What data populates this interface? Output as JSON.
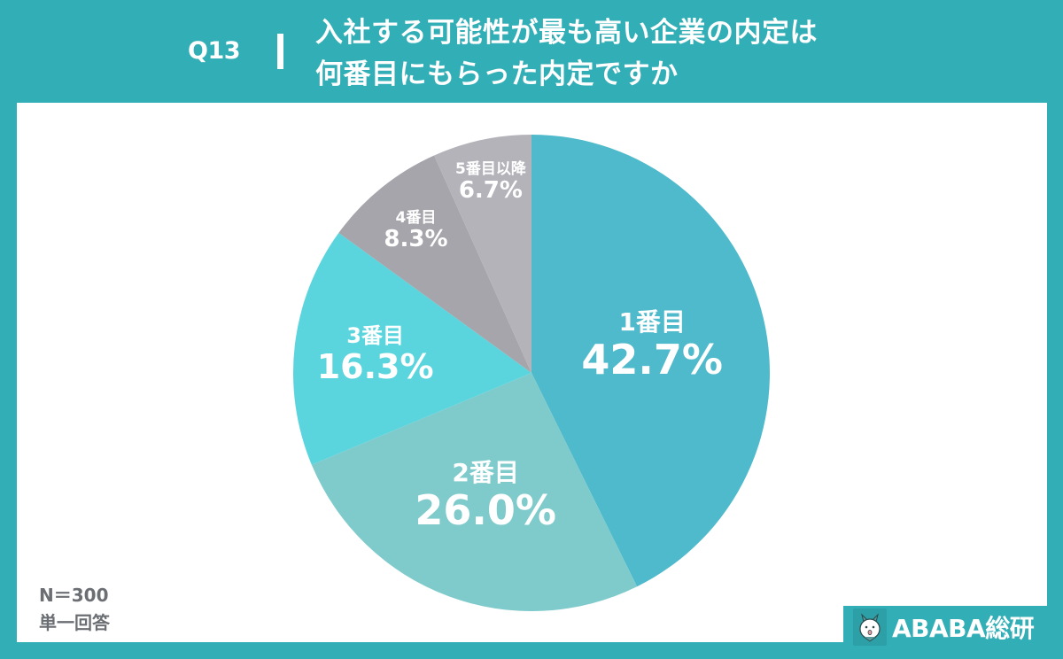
{
  "header": {
    "question_no": "Q13",
    "title_line1": "入社する可能性が最も高い企業の内定は",
    "title_line2": "何番目にもらった内定ですか"
  },
  "notes": {
    "sample_size": "N＝300",
    "answer_type": "単一回答"
  },
  "brand": {
    "name": "ABABA総研",
    "icon": "alpaca-mascot-icon"
  },
  "colors": {
    "background": "#32aeb6",
    "panel": "#ffffff",
    "slice_1": "#4fbacb",
    "slice_2": "#7fcbcc",
    "slice_3": "#5ad5dd",
    "slice_4": "#a5a5ab",
    "slice_5": "#b4b3ba"
  },
  "chart_data": {
    "type": "pie",
    "title": "入社する可能性が最も高い企業の内定は何番目にもらった内定ですか",
    "categories": [
      "1番目",
      "2番目",
      "3番目",
      "4番目",
      "5番目以降"
    ],
    "values": [
      42.7,
      26.0,
      16.3,
      8.3,
      6.7
    ],
    "value_labels": [
      "42.7%",
      "26.0%",
      "16.3%",
      "8.3%",
      "6.7%"
    ],
    "unit": "%",
    "start_angle": "12 o'clock",
    "direction": "clockwise",
    "legend": "none (labels inside slices)",
    "n": 300
  }
}
